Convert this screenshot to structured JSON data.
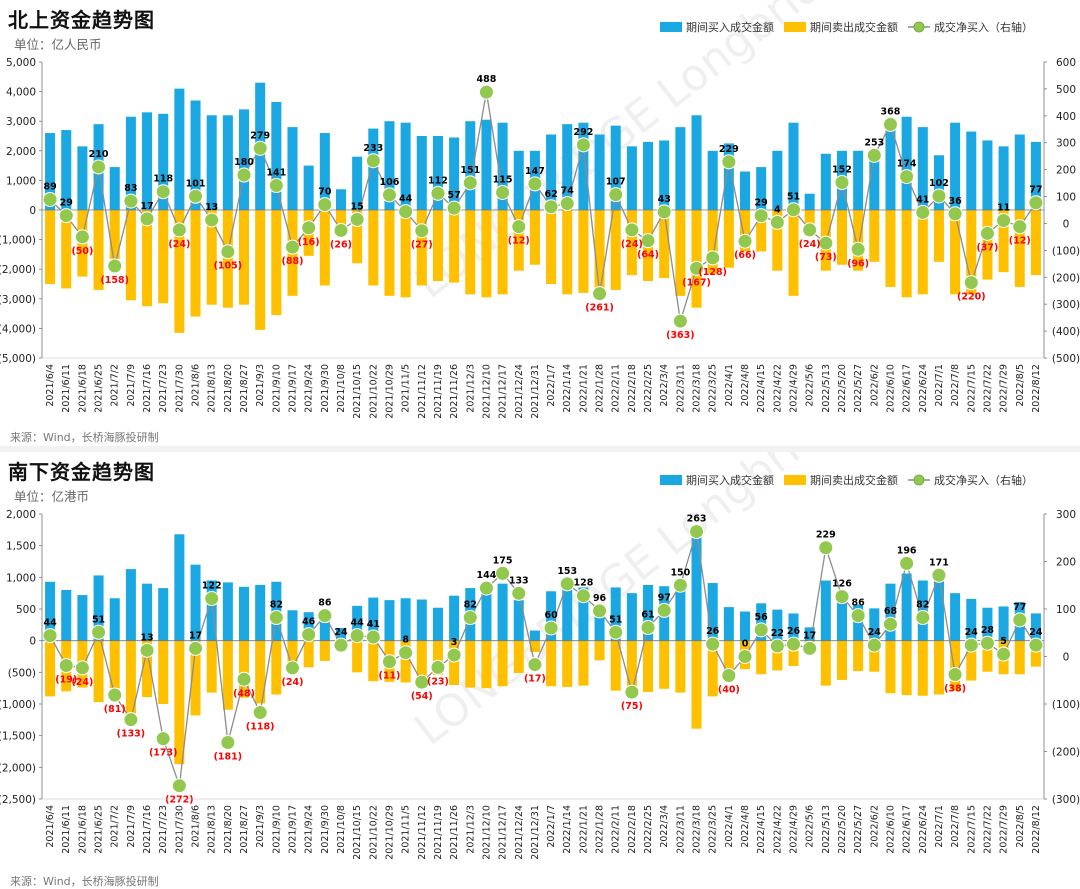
{
  "north": {
    "title": "北上资金趋势图",
    "unit": "单位：亿人民币",
    "source": "来源：Wind，长桥海豚投研制",
    "watermark": "LONGBRIDGE  LongbridgeResearch"
  },
  "south": {
    "title": "南下资金趋势图",
    "unit": "单位：亿港币",
    "source": "来源：Wind，长桥海豚投研制",
    "watermark": "LONGBRIDGE  LongbridgeResearch"
  },
  "colors": {
    "buy": "#1ba8e2",
    "sell": "#ffc000",
    "net_fill": "#92c84e",
    "net_line": "#8c8c8c",
    "net_label_pos": "#000000",
    "net_label_neg": "#ff0000"
  },
  "chart_data": [
    {
      "type": "bar",
      "title": "北上资金趋势图",
      "categories": [
        "2021/6/4",
        "2021/6/11",
        "2021/6/18",
        "2021/6/25",
        "2021/7/2",
        "2021/7/9",
        "2021/7/16",
        "2021/7/23",
        "2021/7/30",
        "2021/8/6",
        "2021/8/13",
        "2021/8/20",
        "2021/8/27",
        "2021/9/3",
        "2021/9/10",
        "2021/9/17",
        "2021/9/24",
        "2021/9/30",
        "2021/10/8",
        "2021/10/15",
        "2021/10/22",
        "2021/10/29",
        "2021/11/5",
        "2021/11/12",
        "2021/11/19",
        "2021/11/26",
        "2021/12/3",
        "2021/12/10",
        "2021/12/17",
        "2021/12/24",
        "2021/12/31",
        "2022/1/7",
        "2022/1/14",
        "2022/1/21",
        "2022/1/28",
        "2022/2/11",
        "2022/2/18",
        "2022/2/25",
        "2022/3/4",
        "2022/3/11",
        "2022/3/18",
        "2022/3/25",
        "2022/4/1",
        "2022/4/8",
        "2022/4/15",
        "2022/4/22",
        "2022/4/29",
        "2022/5/6",
        "2022/5/13",
        "2022/5/20",
        "2022/5/27",
        "2022/6/2",
        "2022/6/10",
        "2022/6/17",
        "2022/6/24",
        "2022/7/1",
        "2022/7/8",
        "2022/7/15",
        "2022/7/22",
        "2022/7/29",
        "2022/8/5",
        "2022/8/12"
      ],
      "xtick_labels": [
        "2021/6/4",
        "2021/6/11",
        "2021/6/18",
        "2021/6/25",
        "2021/7/2",
        "2021/7/9",
        "2021/7/16",
        "2021/7/23",
        "2021/7/30",
        "2021/8/6",
        "2021/8/13",
        "2021/8/20",
        "2021/8/27",
        "2021/9/3",
        "2021/9/10",
        "2021/9/17",
        "2021/9/24",
        "2021/9/30",
        "2021/10/8",
        "2021/10/15",
        "2021/10/22",
        "2021/10/29",
        "2021/11/5",
        "2021/11/12",
        "2021/11/19",
        "2021/11/26",
        "2021/12/3",
        "2021/12/10",
        "2021/12/17",
        "2021/12/24",
        "2021/12/31",
        "2022/1/7",
        "2022/1/14",
        "2022/1/21",
        "2022/1/28",
        "2022/2/11",
        "2022/2/18",
        "2022/2/25",
        "2022/3/4",
        "2022/3/11",
        "2022/3/18",
        "2022/3/25",
        "2022/4/1",
        "2022/4/8",
        "2022/4/15",
        "2022/4/22",
        "2022/4/29",
        "2022/5/6",
        "2022/5/13",
        "2022/5/20",
        "2022/5/27",
        "2022/6/2",
        "2022/6/10",
        "2022/6/17",
        "2022/6/24",
        "2022/7/1",
        "2022/7/8",
        "2022/7/15",
        "2022/7/22",
        "2022/7/29",
        "2022/8/5",
        "2022/8/12"
      ],
      "xtick_step": 1,
      "series": [
        {
          "name": "期间买入成交金额",
          "axis": "left",
          "values": [
            2600,
            2700,
            2150,
            2900,
            1450,
            3150,
            3300,
            3250,
            4100,
            3700,
            3200,
            3200,
            3400,
            4300,
            3650,
            2800,
            1500,
            2600,
            700,
            1800,
            2750,
            3000,
            2950,
            2500,
            2500,
            2450,
            3000,
            3050,
            2950,
            2000,
            2000,
            2550,
            2900,
            2950,
            2550,
            2850,
            2150,
            2300,
            2350,
            2800,
            3200,
            2000,
            2250,
            1300,
            1450,
            2000,
            2950,
            550,
            1900,
            2000,
            2000,
            1850,
            2950,
            3150,
            2800,
            1850,
            2950,
            2650,
            2350,
            2150,
            2550,
            2300
          ]
        },
        {
          "name": "期间卖出成交金额",
          "axis": "left",
          "values": [
            -2500,
            -2650,
            -2250,
            -2700,
            -1650,
            -3050,
            -3250,
            -3150,
            -4150,
            -3600,
            -3200,
            -3300,
            -3200,
            -4050,
            -3550,
            -2900,
            -1550,
            -2550,
            -800,
            -1800,
            -2550,
            -2900,
            -2950,
            -2550,
            -2400,
            -2450,
            -2850,
            -2950,
            -2850,
            -2050,
            -1850,
            -2500,
            -2850,
            -2800,
            -2750,
            -2700,
            -2200,
            -2400,
            -2300,
            -2900,
            -3300,
            -2150,
            -1950,
            -1400,
            -1400,
            -2050,
            -2900,
            -500,
            -2050,
            -1850,
            -2050,
            -1750,
            -2600,
            -2950,
            -2850,
            -1750,
            -2850,
            -2850,
            -2350,
            -2100,
            -2600,
            -2200
          ]
        },
        {
          "name": "成交净买入（右轴）",
          "axis": "right",
          "values": [
            89,
            29,
            -50,
            210,
            -158,
            83,
            17,
            118,
            -24,
            101,
            13,
            -105,
            180,
            279,
            141,
            -88,
            -16,
            70,
            -26,
            15,
            233,
            106,
            44,
            -27,
            112,
            57,
            151,
            488,
            115,
            -12,
            147,
            62,
            74,
            292,
            -261,
            107,
            -24,
            -64,
            43,
            -363,
            -167,
            -128,
            229,
            -66,
            29,
            4,
            51,
            -24,
            -73,
            152,
            -96,
            253,
            368,
            174,
            41,
            102,
            36,
            -220,
            -37,
            11,
            -12,
            77
          ],
          "labels": [
            "89",
            "29",
            "(50)",
            "210",
            "(158)",
            "83",
            "17",
            "118",
            "(24)",
            "101",
            "13",
            "(105)",
            "180",
            "279",
            "141",
            "(88)",
            "(16)",
            "70",
            "(26)",
            "15",
            "233",
            "106",
            "44",
            "(27)",
            "112",
            "57",
            "151",
            "488",
            "115",
            "(12)",
            "147",
            "62",
            "74",
            "292",
            "(261)",
            "107",
            "(24)",
            "(64)",
            "43",
            "(363)",
            "(167)",
            "(128)",
            "229",
            "(66)",
            "29",
            "4",
            "51",
            "(24)",
            "(73)",
            "152",
            "(96)",
            "253",
            "368",
            "174",
            "41",
            "102",
            "36",
            "(220)",
            "(37)",
            "11",
            "(12)",
            "77"
          ]
        }
      ],
      "left_axis": {
        "min": -5000,
        "max": 5000,
        "ticks": [
          5000,
          4000,
          3000,
          2000,
          1000,
          0,
          -1000,
          -2000,
          -3000,
          -4000,
          -5000
        ],
        "tick_labels": [
          "5,000",
          "4,000",
          "3,000",
          "2,000",
          "1,000",
          "0",
          "(1,000)",
          "(2,000)",
          "(3,000)",
          "(4,000)",
          "(5,000)"
        ]
      },
      "right_axis": {
        "min": -500,
        "max": 600,
        "ticks": [
          600,
          500,
          400,
          300,
          200,
          100,
          0,
          -100,
          -200,
          -300,
          -400,
          -500
        ],
        "tick_labels": [
          "600",
          "500",
          "400",
          "300",
          "200",
          "100",
          "0",
          "(100)",
          "(200)",
          "(300)",
          "(400)",
          "(500)"
        ]
      },
      "legend_position": "top-right",
      "grid": false
    },
    {
      "type": "bar",
      "title": "南下资金趋势图",
      "categories": [
        "2021/6/4",
        "2021/6/11",
        "2021/6/18",
        "2021/6/25",
        "2021/7/2",
        "2021/7/9",
        "2021/7/16",
        "2021/7/23",
        "2021/7/30",
        "2021/8/6",
        "2021/8/13",
        "2021/8/20",
        "2021/8/27",
        "2021/9/3",
        "2021/9/10",
        "2021/9/17",
        "2021/9/24",
        "2021/9/30",
        "2021/10/8",
        "2021/10/15",
        "2021/10/22",
        "2021/10/29",
        "2021/11/5",
        "2021/11/12",
        "2021/11/19",
        "2021/11/26",
        "2021/12/3",
        "2021/12/10",
        "2021/12/17",
        "2021/12/24",
        "2021/12/31",
        "2022/1/7",
        "2022/1/14",
        "2022/1/21",
        "2022/1/28",
        "2022/2/11",
        "2022/2/18",
        "2022/2/25",
        "2022/3/4",
        "2022/3/11",
        "2022/3/18",
        "2022/3/25",
        "2022/4/1",
        "2022/4/8",
        "2022/4/15",
        "2022/4/22",
        "2022/4/29",
        "2022/5/6",
        "2022/5/13",
        "2022/5/20",
        "2022/5/27",
        "2022/6/2",
        "2022/6/10",
        "2022/6/17",
        "2022/6/24",
        "2022/7/1",
        "2022/7/8",
        "2022/7/15",
        "2022/7/22",
        "2022/7/29",
        "2022/8/5",
        "2022/8/12"
      ],
      "xtick_labels": [
        "2021/6/4",
        "2021/6/11",
        "2021/6/18",
        "2021/6/25",
        "2021/7/2",
        "2021/7/9",
        "2021/7/16",
        "2021/7/23",
        "2021/7/30",
        "2021/8/6",
        "2021/8/13",
        "2021/8/20",
        "2021/8/27",
        "2021/9/3",
        "2021/9/10",
        "2021/9/17",
        "2021/9/24",
        "2021/9/30",
        "2021/10/8",
        "2021/10/15",
        "2021/10/22",
        "2021/10/29",
        "2021/11/5",
        "2021/11/12",
        "2021/11/19",
        "2021/11/26",
        "2021/12/3",
        "2021/12/10",
        "2021/12/17",
        "2021/12/24",
        "2021/12/31",
        "2022/1/7",
        "2022/1/14",
        "2022/1/21",
        "2022/1/28",
        "2022/2/11",
        "2022/2/18",
        "2022/2/25",
        "2022/3/4",
        "2022/3/11",
        "2022/3/18",
        "2022/3/25",
        "2022/4/1",
        "2022/4/8",
        "2022/4/15",
        "2022/4/22",
        "2022/4/29",
        "2022/5/6",
        "2022/5/13",
        "2022/5/20",
        "2022/5/27",
        "2022/6/2",
        "2022/6/10",
        "2022/6/17",
        "2022/6/24",
        "2022/7/1",
        "2022/7/8",
        "2022/7/15",
        "2022/7/22",
        "2022/7/29",
        "2022/8/5",
        "2022/8/12"
      ],
      "xtick_step": 1,
      "series": [
        {
          "name": "期间买入成交金额",
          "axis": "left",
          "values": [
            930,
            800,
            720,
            1030,
            670,
            1130,
            900,
            830,
            1680,
            1200,
            950,
            920,
            850,
            880,
            930,
            480,
            450,
            400,
            200,
            550,
            680,
            640,
            670,
            650,
            520,
            710,
            830,
            900,
            900,
            640,
            160,
            780,
            880,
            840,
            400,
            840,
            750,
            880,
            860,
            970,
            1650,
            910,
            530,
            460,
            590,
            490,
            430,
            210,
            950,
            750,
            570,
            510,
            900,
            1060,
            950,
            1020,
            750,
            660,
            520,
            540,
            610,
            430
          ],
          "labels": [
            "44",
            "(19)",
            "(24)",
            "51",
            "(81)",
            "(133)",
            "13",
            "(173)",
            "(272)",
            "17",
            "122",
            "(181)",
            "(48)",
            "(118)",
            "82",
            "(24)",
            "46",
            "86",
            "24",
            "44",
            "41",
            "(11)",
            "8",
            "(54)",
            "(23)",
            "3",
            "82",
            "144",
            "175",
            "133",
            "(17)",
            "60",
            "153",
            "128",
            "96",
            "51",
            "(75)",
            "61",
            "97",
            "150",
            "263",
            "26",
            "(40)",
            "0",
            "56",
            "22",
            "26",
            "17",
            "229",
            "126",
            "86",
            "24",
            "68",
            "196",
            "82",
            "171",
            "(38)",
            "24",
            "28",
            "5",
            "77",
            "24"
          ]
        },
        {
          "name": "期间卖出成交金额",
          "axis": "left",
          "values": [
            -880,
            -800,
            -740,
            -970,
            -750,
            -1270,
            -890,
            -1000,
            -1950,
            -1180,
            -820,
            -1090,
            -900,
            -990,
            -850,
            -500,
            -420,
            -320,
            -160,
            -500,
            -640,
            -650,
            -660,
            -700,
            -540,
            -700,
            -740,
            -750,
            -720,
            -510,
            -180,
            -720,
            -730,
            -710,
            -310,
            -790,
            -820,
            -810,
            -760,
            -820,
            -1390,
            -880,
            -570,
            -450,
            -530,
            -470,
            -400,
            -190,
            -710,
            -620,
            -480,
            -490,
            -830,
            -860,
            -870,
            -850,
            -790,
            -630,
            -490,
            -530,
            -530,
            -410
          ]
        },
        {
          "name": "成交净买入（右轴）",
          "axis": "right",
          "values": [
            44,
            -19,
            -24,
            51,
            -81,
            -133,
            13,
            -173,
            -272,
            17,
            122,
            -181,
            -48,
            -118,
            82,
            -24,
            46,
            86,
            24,
            44,
            41,
            -11,
            8,
            -54,
            -23,
            3,
            82,
            144,
            175,
            133,
            -17,
            60,
            153,
            128,
            96,
            51,
            -75,
            61,
            97,
            150,
            263,
            26,
            -40,
            0,
            56,
            22,
            26,
            17,
            229,
            126,
            86,
            24,
            68,
            196,
            82,
            171,
            -38,
            24,
            28,
            5,
            77,
            24
          ]
        }
      ],
      "left_axis": {
        "min": -2500,
        "max": 2000,
        "ticks": [
          2000,
          1500,
          1000,
          500,
          0,
          -500,
          -1000,
          -1500,
          -2000,
          -2500
        ],
        "tick_labels": [
          "2,000",
          "1,500",
          "1,000",
          "500",
          "0",
          "(500)",
          "(1,000)",
          "(1,500)",
          "(2,000)",
          "(2,500)"
        ]
      },
      "right_axis": {
        "min": -300,
        "max": 300,
        "ticks": [
          300,
          200,
          100,
          0,
          -100,
          -200,
          -300
        ],
        "tick_labels": [
          "300",
          "200",
          "100",
          "0",
          "(100)",
          "(200)",
          "(300)"
        ]
      },
      "legend_position": "top-right",
      "grid": false
    }
  ]
}
